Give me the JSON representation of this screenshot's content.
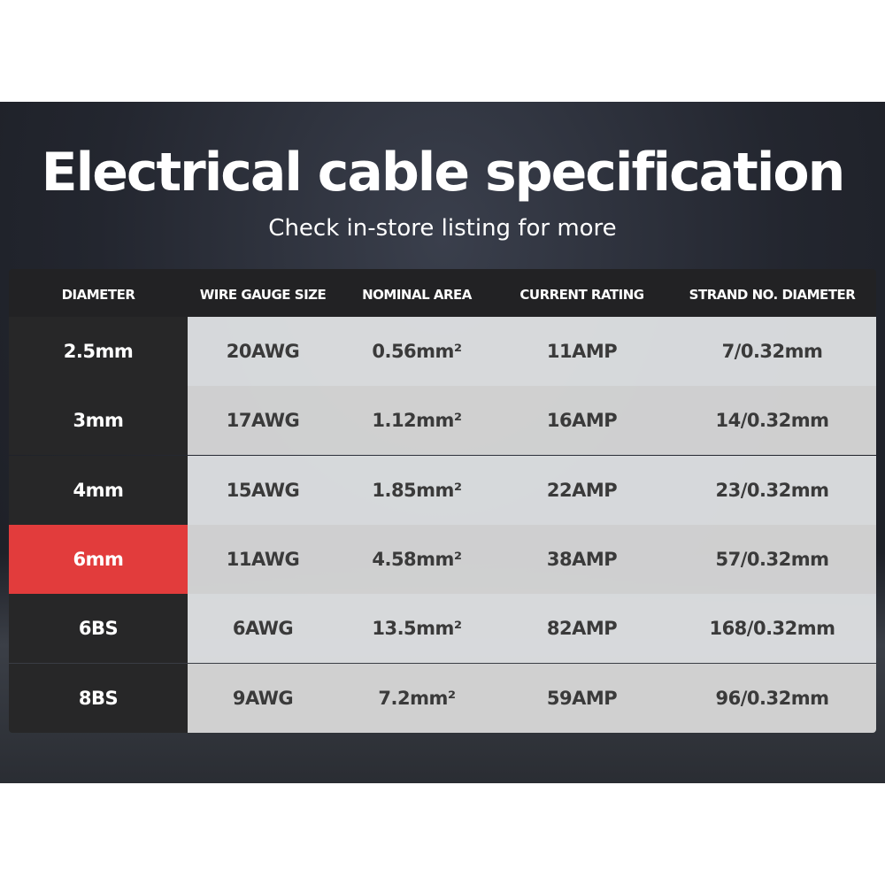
{
  "title": "Electrical cable specification",
  "subtitle": "Check in-store listing for more",
  "colors": {
    "highlight": "#e23c3c",
    "dark_cell": "#272728",
    "light_cell": "#dedfe1"
  },
  "table": {
    "headers": [
      "DIAMETER",
      "WIRE GAUGE SIZE",
      "NOMINAL AREA",
      "CURRENT RATING",
      "STRAND NO. DIAMETER"
    ],
    "rows": [
      [
        "2.5mm",
        "20AWG",
        "0.56mm²",
        "11AMP",
        "7/0.32mm"
      ],
      [
        "3mm",
        "17AWG",
        "1.12mm²",
        "16AMP",
        "14/0.32mm"
      ],
      [
        "4mm",
        "15AWG",
        "1.85mm²",
        "22AMP",
        "23/0.32mm"
      ],
      [
        "6mm",
        "11AWG",
        "4.58mm²",
        "38AMP",
        "57/0.32mm"
      ],
      [
        "6BS",
        "6AWG",
        "13.5mm²",
        "82AMP",
        "168/0.32mm"
      ],
      [
        "8BS",
        "9AWG",
        "7.2mm²",
        "59AMP",
        "96/0.32mm"
      ]
    ],
    "highlighted_row": "6mm"
  }
}
